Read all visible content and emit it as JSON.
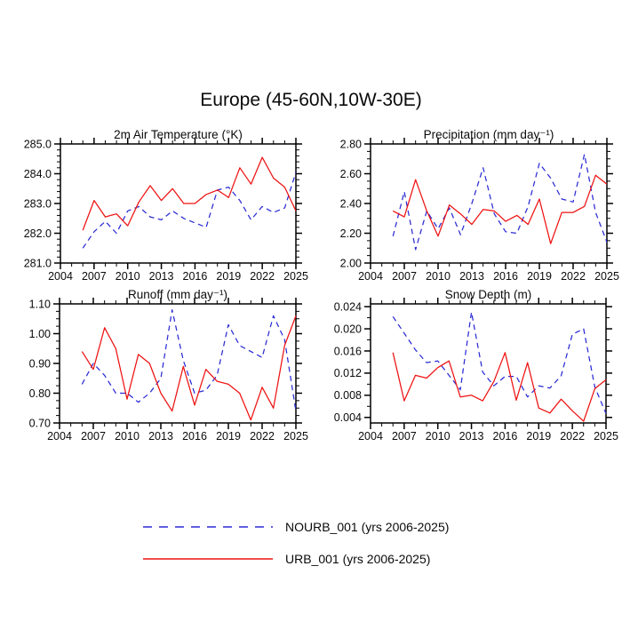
{
  "title": "Europe (45-60N,10W-30E)",
  "colors": {
    "nourb": "#2b2bd5",
    "urb": "#ee1111",
    "axis": "#000000",
    "background": "#ffffff"
  },
  "legend": {
    "items": [
      {
        "label": "NOURB_001 (yrs 2006-2025)",
        "series": "nourb",
        "style": "dashed"
      },
      {
        "label": "URB_001 (yrs 2006-2025)",
        "series": "urb",
        "style": "solid"
      }
    ]
  },
  "chart_data": [
    {
      "id": "air-temperature",
      "type": "line",
      "title": "2m Air Temperature (°K)",
      "x_years": [
        2006,
        2007,
        2008,
        2009,
        2010,
        2011,
        2012,
        2013,
        2014,
        2015,
        2016,
        2017,
        2018,
        2019,
        2020,
        2021,
        2022,
        2023,
        2024,
        2025
      ],
      "xlim": [
        2004,
        2025
      ],
      "xticks": [
        2004,
        2007,
        2010,
        2013,
        2016,
        2019,
        2022,
        2025
      ],
      "xtick_labels": [
        "2004",
        "2007",
        "2010",
        "2013",
        "2016",
        "2019",
        "2022",
        "2025"
      ],
      "xminor_step": 1,
      "ylim": [
        281.0,
        285.0
      ],
      "yticks": [
        281.0,
        282.0,
        283.0,
        284.0,
        285.0
      ],
      "ytick_labels": [
        "281.0",
        "282.0",
        "283.0",
        "284.0",
        "285.0"
      ],
      "yminor_step": 0.2,
      "grid": false,
      "series": [
        {
          "name": "NOURB_001",
          "color": "nourb",
          "style": "dashed",
          "values": [
            281.5,
            282.05,
            282.4,
            282.0,
            282.75,
            282.9,
            282.55,
            282.45,
            282.75,
            282.5,
            282.35,
            282.2,
            283.45,
            283.55,
            283.1,
            282.45,
            282.9,
            282.7,
            282.85,
            284.05
          ]
        },
        {
          "name": "URB_001",
          "color": "urb",
          "style": "solid",
          "values": [
            282.1,
            283.1,
            282.55,
            282.65,
            282.25,
            283.05,
            283.6,
            283.1,
            283.5,
            283.0,
            283.0,
            283.3,
            283.45,
            283.2,
            284.2,
            283.65,
            284.55,
            283.85,
            283.55,
            282.75
          ]
        }
      ]
    },
    {
      "id": "precipitation",
      "type": "line",
      "title": "Precipitation (mm day⁻¹)",
      "x_years": [
        2006,
        2007,
        2008,
        2009,
        2010,
        2011,
        2012,
        2013,
        2014,
        2015,
        2016,
        2017,
        2018,
        2019,
        2020,
        2021,
        2022,
        2023,
        2024,
        2025
      ],
      "xlim": [
        2004,
        2025
      ],
      "xticks": [
        2004,
        2007,
        2010,
        2013,
        2016,
        2019,
        2022,
        2025
      ],
      "xtick_labels": [
        "2004",
        "2007",
        "2010",
        "2013",
        "2016",
        "2019",
        "2022",
        "2025"
      ],
      "xminor_step": 1,
      "ylim": [
        2.0,
        2.8
      ],
      "yticks": [
        2.0,
        2.2,
        2.4,
        2.6,
        2.8
      ],
      "ytick_labels": [
        "2.00",
        "2.20",
        "2.40",
        "2.60",
        "2.80"
      ],
      "yminor_step": 0.05,
      "grid": false,
      "series": [
        {
          "name": "NOURB_001",
          "color": "nourb",
          "style": "dashed",
          "values": [
            2.18,
            2.48,
            2.09,
            2.35,
            2.23,
            2.37,
            2.19,
            2.4,
            2.64,
            2.33,
            2.21,
            2.2,
            2.38,
            2.67,
            2.57,
            2.43,
            2.41,
            2.73,
            2.34,
            2.14
          ]
        },
        {
          "name": "URB_001",
          "color": "urb",
          "style": "solid",
          "values": [
            2.35,
            2.31,
            2.56,
            2.35,
            2.18,
            2.39,
            2.33,
            2.26,
            2.36,
            2.35,
            2.28,
            2.32,
            2.26,
            2.43,
            2.13,
            2.34,
            2.34,
            2.38,
            2.59,
            2.53
          ]
        }
      ]
    },
    {
      "id": "runoff",
      "type": "line",
      "title": "Runoff (mm day⁻¹)",
      "x_years": [
        2006,
        2007,
        2008,
        2009,
        2010,
        2011,
        2012,
        2013,
        2014,
        2015,
        2016,
        2017,
        2018,
        2019,
        2020,
        2021,
        2022,
        2023,
        2024,
        2025
      ],
      "xlim": [
        2004,
        2025
      ],
      "xticks": [
        2004,
        2007,
        2010,
        2013,
        2016,
        2019,
        2022,
        2025
      ],
      "xtick_labels": [
        "2004",
        "2007",
        "2010",
        "2013",
        "2016",
        "2019",
        "2022",
        "2025"
      ],
      "xminor_step": 1,
      "ylim": [
        0.7,
        1.1
      ],
      "yticks": [
        0.7,
        0.8,
        0.9,
        1.0,
        1.1
      ],
      "ytick_labels": [
        "0.70",
        "0.80",
        "0.90",
        "1.00",
        "1.10"
      ],
      "yminor_step": 0.025,
      "grid": false,
      "series": [
        {
          "name": "NOURB_001",
          "color": "nourb",
          "style": "dashed",
          "values": [
            0.83,
            0.9,
            0.86,
            0.8,
            0.8,
            0.77,
            0.8,
            0.85,
            1.08,
            0.91,
            0.8,
            0.81,
            0.86,
            1.03,
            0.96,
            0.94,
            0.92,
            1.06,
            0.98,
            0.74
          ]
        },
        {
          "name": "URB_001",
          "color": "urb",
          "style": "solid",
          "values": [
            0.94,
            0.88,
            1.02,
            0.95,
            0.78,
            0.93,
            0.9,
            0.8,
            0.74,
            0.89,
            0.76,
            0.88,
            0.84,
            0.83,
            0.8,
            0.71,
            0.82,
            0.75,
            0.96,
            1.06
          ]
        }
      ]
    },
    {
      "id": "snow-depth",
      "type": "line",
      "title": "Snow Depth (m)",
      "x_years": [
        2006,
        2007,
        2008,
        2009,
        2010,
        2011,
        2012,
        2013,
        2014,
        2015,
        2016,
        2017,
        2018,
        2019,
        2020,
        2021,
        2022,
        2023,
        2024,
        2025
      ],
      "xlim": [
        2004,
        2025
      ],
      "xticks": [
        2004,
        2007,
        2010,
        2013,
        2016,
        2019,
        2022,
        2025
      ],
      "xtick_labels": [
        "2004",
        "2007",
        "2010",
        "2013",
        "2016",
        "2019",
        "2022",
        "2025"
      ],
      "xminor_step": 1,
      "ylim": [
        0.003,
        0.0245
      ],
      "yticks": [
        0.004,
        0.008,
        0.012,
        0.016,
        0.02,
        0.024
      ],
      "ytick_labels": [
        "0.004",
        "0.008",
        "0.012",
        "0.016",
        "0.020",
        "0.024"
      ],
      "yminor_step": 0.002,
      "grid": false,
      "series": [
        {
          "name": "NOURB_001",
          "color": "nourb",
          "style": "dashed",
          "values": [
            0.0222,
            0.0192,
            0.0162,
            0.0139,
            0.0142,
            0.0116,
            0.009,
            0.023,
            0.0122,
            0.0097,
            0.0114,
            0.0114,
            0.0077,
            0.0097,
            0.0093,
            0.0115,
            0.019,
            0.02,
            0.0095,
            0.0047
          ]
        },
        {
          "name": "URB_001",
          "color": "urb",
          "style": "solid",
          "values": [
            0.0157,
            0.007,
            0.0116,
            0.0111,
            0.013,
            0.0142,
            0.0077,
            0.008,
            0.007,
            0.0105,
            0.0157,
            0.0071,
            0.0139,
            0.0057,
            0.0048,
            0.0073,
            0.0052,
            0.0033,
            0.0092,
            0.0108
          ]
        }
      ]
    }
  ]
}
